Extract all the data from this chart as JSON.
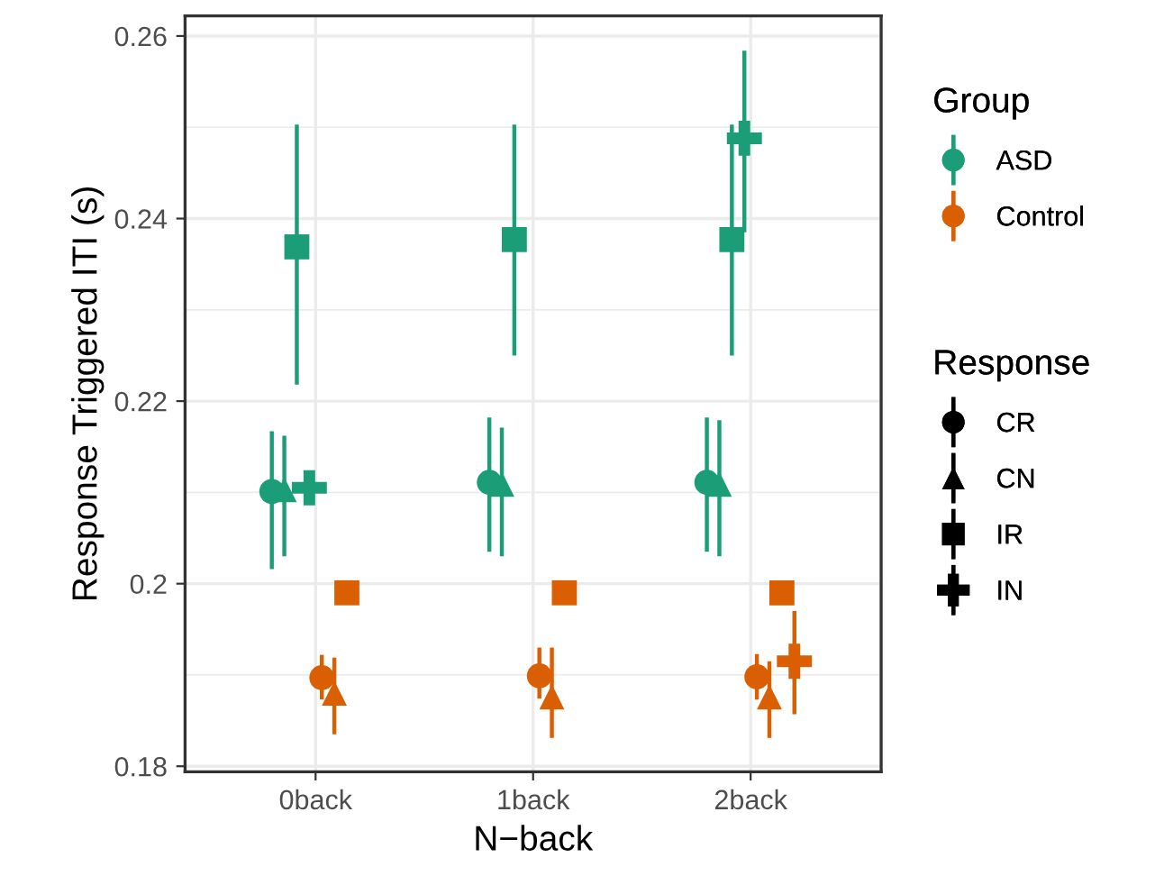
{
  "chart_data": {
    "type": "scatter",
    "xlabel": "N−back",
    "ylabel": "Response Triggered ITI (s)",
    "categories": [
      "0back",
      "1back",
      "2back"
    ],
    "ylim": [
      0.1794,
      0.2622
    ],
    "yticks": [
      0.18,
      0.2,
      0.22,
      0.24,
      0.26
    ],
    "grid": true,
    "legend": "right",
    "legend_title": [
      "Group",
      "Response"
    ],
    "series": [
      {
        "name": "ASD",
        "color": "#1b9e77",
        "marker": "circle",
        "values": [
          0.2101,
          0.2111,
          0.2111
        ],
        "errors": [
          [
            0.2016,
            0.2167
          ],
          [
            0.2035,
            0.2182
          ],
          [
            0.2035,
            0.2182
          ]
        ]
      },
      {
        "color": "#1b9e77",
        "marker": "triangle",
        "values": [
          0.2103,
          0.2109,
          0.2109
        ],
        "errors": [
          [
            0.203,
            0.2162
          ],
          [
            0.203,
            0.2171
          ],
          [
            0.203,
            0.2179
          ]
        ]
      },
      {
        "color": "#1b9e77",
        "marker": "square",
        "values": [
          0.2369,
          0.2377,
          0.2377
        ],
        "errors": [
          [
            0.2218,
            0.2503
          ],
          [
            0.225,
            0.2503
          ],
          [
            0.225,
            0.2503
          ]
        ]
      },
      {
        "color": "#1b9e77",
        "marker": "cross",
        "values": [
          0.2105,
          null,
          0.2488
        ],
        "errors": [
          null,
          null,
          [
            0.2385,
            0.2584
          ]
        ]
      },
      {
        "name": "Control",
        "color": "#d95f02",
        "marker": "circle",
        "values": [
          0.1897,
          0.1899,
          0.1898
        ],
        "errors": [
          [
            0.1873,
            0.1922
          ],
          [
            0.1874,
            0.193
          ],
          [
            0.1873,
            0.1923
          ]
        ]
      },
      {
        "color": "#d95f02",
        "marker": "triangle",
        "values": [
          0.188,
          0.1876,
          0.1876
        ],
        "errors": [
          [
            0.1835,
            0.1919
          ],
          [
            0.1831,
            0.193
          ],
          [
            0.1831,
            0.1915
          ]
        ]
      },
      {
        "color": "#d95f02",
        "marker": "square",
        "values": [
          0.199,
          0.199,
          0.199
        ],
        "errors": [
          null,
          null,
          null
        ]
      },
      {
        "color": "#d95f02",
        "marker": "cross",
        "values": [
          null,
          null,
          0.1915
        ],
        "errors": [
          null,
          null,
          [
            0.1857,
            0.197
          ]
        ]
      },
      {
        "name": "CR",
        "color": "#000000",
        "marker": "circle",
        "values": [
          null,
          null,
          null
        ]
      },
      {
        "name": "CN",
        "color": "#000000",
        "marker": "triangle",
        "values": [
          null,
          null,
          null
        ]
      },
      {
        "name": "IR",
        "color": "#000000",
        "marker": "square",
        "values": [
          null,
          null,
          null
        ]
      },
      {
        "name": "IN",
        "color": "#000000",
        "marker": "cross",
        "values": [
          null,
          null,
          null
        ]
      }
    ]
  }
}
